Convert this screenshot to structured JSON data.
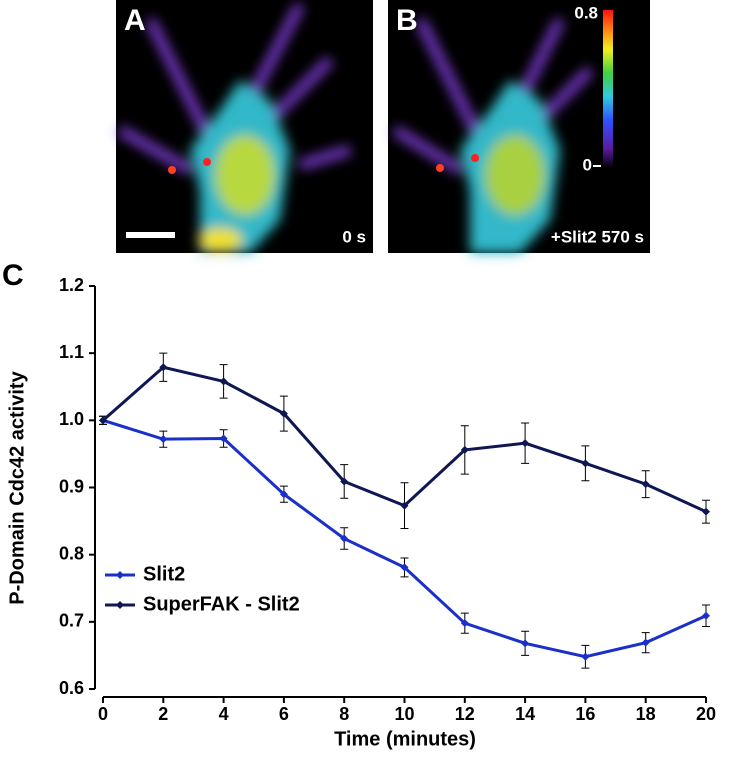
{
  "images": [
    {
      "label": "A",
      "caption": "0 s"
    },
    {
      "label": "B",
      "caption": "+Slit2 570 s"
    }
  ],
  "colorbar": {
    "max_label": "0.8",
    "min_label": "0"
  },
  "chart_data": {
    "type": "line",
    "panel_label": "C",
    "x_label": "Time (minutes)",
    "y_label": "P-Domain Cdc42 activity",
    "x": [
      0,
      2,
      4,
      6,
      8,
      10,
      12,
      14,
      16,
      18,
      20
    ],
    "series": [
      {
        "name": "Slit2",
        "color": "#1b2fc9",
        "values": [
          1.0,
          0.972,
          0.973,
          0.89,
          0.824,
          0.781,
          0.698,
          0.668,
          0.648,
          0.669,
          0.709
        ],
        "errors": [
          0.006,
          0.012,
          0.013,
          0.012,
          0.016,
          0.014,
          0.015,
          0.018,
          0.017,
          0.015,
          0.016
        ]
      },
      {
        "name": "SuperFAK - Slit2",
        "color": "#0f1752",
        "values": [
          1.0,
          1.079,
          1.058,
          1.01,
          0.909,
          0.873,
          0.956,
          0.966,
          0.936,
          0.905,
          0.864
        ],
        "errors": [
          0.006,
          0.021,
          0.025,
          0.026,
          0.025,
          0.034,
          0.036,
          0.03,
          0.026,
          0.02,
          0.017
        ]
      }
    ],
    "xlim": [
      0,
      20
    ],
    "xticks": [
      0,
      2,
      4,
      6,
      8,
      10,
      12,
      14,
      16,
      18,
      20
    ],
    "ylim": [
      0.6,
      1.2
    ],
    "yticks": [
      0.6,
      0.7,
      0.8,
      0.9,
      {
        "value": 1,
        "label": "1.0"
      },
      1.1,
      1.2
    ],
    "legend": "lower-left"
  }
}
